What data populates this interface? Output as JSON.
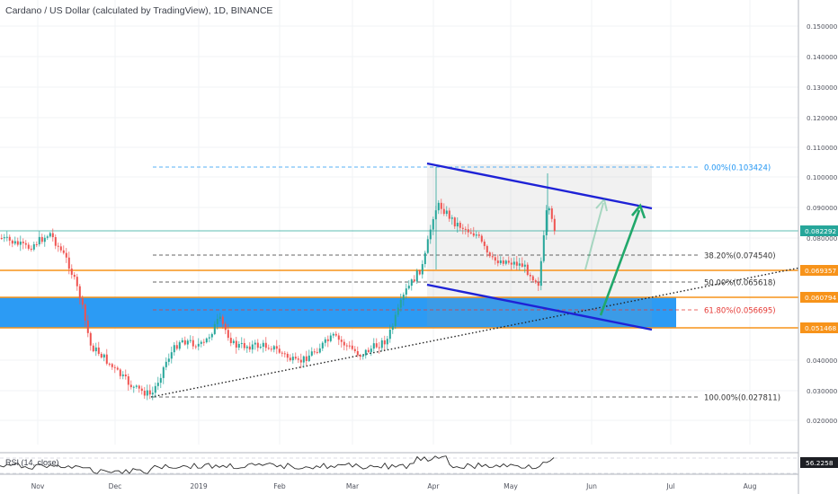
{
  "chart_data": {
    "type": "candlestick",
    "title": "Cardano / US Dollar (calculated by TradingView), 1D, BINANCE",
    "y_axis_ticks": [
      "0.150000",
      "0.140000",
      "0.130000",
      "0.120000",
      "0.110000",
      "0.100000",
      "0.090000",
      "0.080000",
      "0.040000",
      "0.030000",
      "0.020000"
    ],
    "x_axis_ticks": [
      "Nov",
      "Dec",
      "2019",
      "Feb",
      "Mar",
      "Apr",
      "May",
      "Jun",
      "Jul",
      "Aug"
    ],
    "price_badges": [
      {
        "label": "0.082292",
        "color": "#26a69a"
      },
      {
        "label": "0.069357",
        "color": "#f7931a"
      },
      {
        "label": "0.060794",
        "color": "#f7931a"
      },
      {
        "label": "0.051468",
        "color": "#f7931a"
      }
    ],
    "fib_levels": [
      {
        "label": "0.00%(0.103424)",
        "price": 0.103424,
        "color": "#2196f3"
      },
      {
        "label": "38.20%(0.074540)",
        "price": 0.07454,
        "color": "#333333"
      },
      {
        "label": "50.00%(0.065618)",
        "price": 0.065618,
        "color": "#333333"
      },
      {
        "label": "61.80%(0.056695)",
        "price": 0.056695,
        "color": "#e53935"
      },
      {
        "label": "100.00%(0.027811)",
        "price": 0.027811,
        "color": "#333333"
      }
    ],
    "horizontal_levels": [
      0.082292,
      0.069357
    ],
    "support_zone": {
      "top": 0.060794,
      "bottom": 0.051468,
      "color": "#2196f3"
    },
    "channel": {
      "color": "#1e22d6"
    },
    "arrows": {
      "color": "#21a86b"
    },
    "rsi": {
      "label": "RSI (14, close)",
      "value": "56.2258"
    },
    "colors": {
      "up": "#26a69a",
      "down": "#ef5350",
      "orange": "#f7931a"
    }
  }
}
